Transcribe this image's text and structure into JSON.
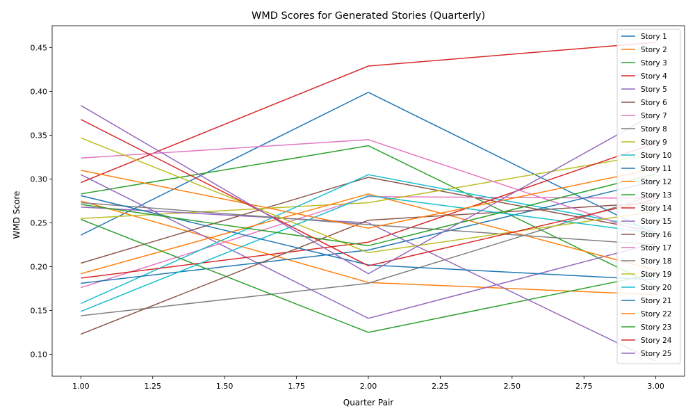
{
  "chart_data": {
    "type": "line",
    "title": "WMD Scores for Generated Stories (Quarterly)",
    "xlabel": "Quarter Pair",
    "ylabel": "WMD Score",
    "xlim": [
      0.9,
      3.1
    ],
    "ylim": [
      0.075,
      0.475
    ],
    "x_ticks": [
      "1.00",
      "1.25",
      "1.50",
      "1.75",
      "2.00",
      "2.25",
      "2.50",
      "2.75",
      "3.00"
    ],
    "y_ticks": [
      "0.10",
      "0.15",
      "0.20",
      "0.25",
      "0.30",
      "0.35",
      "0.40",
      "0.45"
    ],
    "grid": false,
    "legend_position": "upper-right",
    "x": [
      1,
      2,
      3
    ],
    "series": [
      {
        "name": "Story 1",
        "color": "#1f77b4",
        "values": [
          0.236,
          0.399,
          0.237
        ]
      },
      {
        "name": "Story 2",
        "color": "#ff7f0e",
        "values": [
          0.275,
          0.182,
          0.168
        ]
      },
      {
        "name": "Story 3",
        "color": "#2ca02c",
        "values": [
          0.283,
          0.338,
          0.178
        ]
      },
      {
        "name": "Story 4",
        "color": "#d62728",
        "values": [
          0.296,
          0.429,
          0.456
        ]
      },
      {
        "name": "Story 5",
        "color": "#9467bd",
        "values": [
          0.305,
          0.141,
          0.227
        ]
      },
      {
        "name": "Story 6",
        "color": "#8c564b",
        "values": [
          0.204,
          0.302,
          0.24
        ]
      },
      {
        "name": "Story 7",
        "color": "#e377c2",
        "values": [
          0.176,
          0.28,
          0.278
        ]
      },
      {
        "name": "Story 8",
        "color": "#7f7f7f",
        "values": [
          0.144,
          0.181,
          0.282
        ]
      },
      {
        "name": "Story 9",
        "color": "#bcbd22",
        "values": [
          0.255,
          0.273,
          0.329
        ]
      },
      {
        "name": "Story 10",
        "color": "#17becf",
        "values": [
          0.158,
          0.305,
          0.243
        ]
      },
      {
        "name": "Story 11",
        "color": "#1f77b4",
        "values": [
          0.181,
          0.219,
          0.298
        ]
      },
      {
        "name": "Story 12",
        "color": "#ff7f0e",
        "values": [
          0.192,
          0.283,
          0.196
        ]
      },
      {
        "name": "Story 13",
        "color": "#2ca02c",
        "values": [
          0.254,
          0.125,
          0.192
        ]
      },
      {
        "name": "Story 14",
        "color": "#d62728",
        "values": [
          0.187,
          0.228,
          0.341
        ]
      },
      {
        "name": "Story 15",
        "color": "#9467bd",
        "values": [
          0.268,
          0.25,
          0.092
        ]
      },
      {
        "name": "Story 16",
        "color": "#8c564b",
        "values": [
          0.123,
          0.253,
          0.273
        ]
      },
      {
        "name": "Story 17",
        "color": "#e377c2",
        "values": [
          0.324,
          0.345,
          0.235
        ]
      },
      {
        "name": "Story 18",
        "color": "#7f7f7f",
        "values": [
          0.273,
          0.248,
          0.225
        ]
      },
      {
        "name": "Story 19",
        "color": "#bcbd22",
        "values": [
          0.347,
          0.216,
          0.263
        ]
      },
      {
        "name": "Story 20",
        "color": "#17becf",
        "values": [
          0.149,
          0.281,
          0.238
        ]
      },
      {
        "name": "Story 21",
        "color": "#1f77b4",
        "values": [
          0.281,
          0.202,
          0.185
        ]
      },
      {
        "name": "Story 22",
        "color": "#ff7f0e",
        "values": [
          0.31,
          0.244,
          0.312
        ]
      },
      {
        "name": "Story 23",
        "color": "#2ca02c",
        "values": [
          0.271,
          0.224,
          0.306
        ]
      },
      {
        "name": "Story 24",
        "color": "#d62728",
        "values": [
          0.368,
          0.201,
          0.277
        ]
      },
      {
        "name": "Story 25",
        "color": "#9467bd",
        "values": [
          0.384,
          0.192,
          0.375
        ]
      }
    ]
  }
}
